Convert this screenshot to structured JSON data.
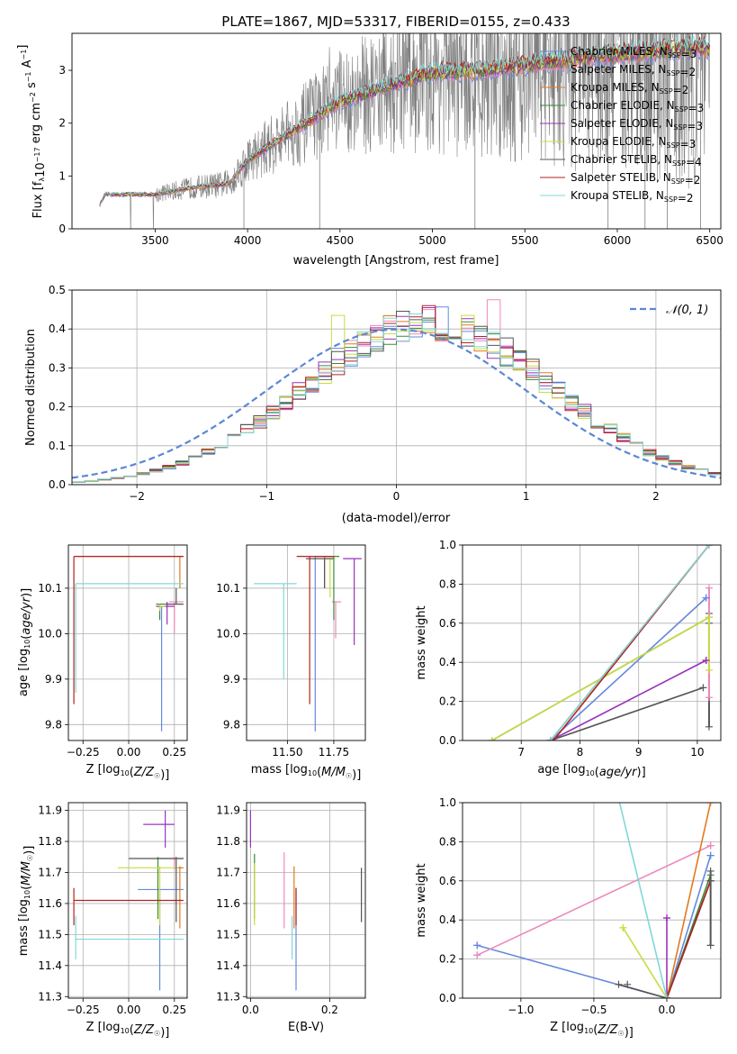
{
  "title": "PLATE=1867, MJD=53317, FIBERID=0155, z=0.433",
  "colors": {
    "Chabrier MILES": "#6688dd",
    "Salpeter MILES": "#ee88bb",
    "Kroupa MILES": "#e07a1f",
    "Chabrier ELODIE": "#3a8a3a",
    "Salpeter ELODIE": "#9933bb",
    "Kroupa ELODIE": "#c8dc40",
    "Chabrier STELIB": "#555555",
    "Salpeter STELIB": "#b22222",
    "Kroupa STELIB": "#80d8d8",
    "data": "#7f7f7f",
    "normal": "#5b86d6"
  },
  "chart_data": [
    {
      "id": "spectrum",
      "type": "line",
      "xlabel": "wavelength [Angstrom, rest frame]",
      "ylabel_main": "Flux [f",
      "ylabel_sub": "λ",
      "ylabel_rest": "10",
      "ylabel_exp": "−17",
      "ylabel_unit": " erg cm",
      "ylabel_exp2": "−2",
      "ylabel_unit2": " s",
      "ylabel_exp3": "−1",
      "ylabel_unit3": " A",
      "ylabel_exp4": "−1",
      "ylabel_end": "]",
      "xlim": [
        3050,
        6560
      ],
      "ylim": [
        0,
        3.7
      ],
      "xticks": [
        "3500",
        "4000",
        "4500",
        "5000",
        "5500",
        "6000",
        "6500"
      ],
      "xtick_values": [
        3500,
        4000,
        4500,
        5000,
        5500,
        6000,
        6500
      ],
      "yticks": [
        "0",
        "1",
        "2",
        "3"
      ],
      "ytick_values": [
        0,
        1,
        2,
        3
      ],
      "legend_position": "top-right",
      "legend": [
        {
          "name": "Chabrier MILES",
          "nssp": "3"
        },
        {
          "name": "Salpeter MILES",
          "nssp": "2"
        },
        {
          "name": "Kroupa MILES",
          "nssp": "2"
        },
        {
          "name": "Chabrier ELODIE",
          "nssp": "3"
        },
        {
          "name": "Salpeter ELODIE",
          "nssp": "3"
        },
        {
          "name": "Kroupa ELODIE",
          "nssp": "3"
        },
        {
          "name": "Chabrier STELIB",
          "nssp": "4"
        },
        {
          "name": "Salpeter STELIB",
          "nssp": "2"
        },
        {
          "name": "Kroupa STELIB",
          "nssp": "2"
        }
      ],
      "data_range": [
        3200,
        6500
      ],
      "model_profile": {
        "x": [
          3200,
          3230,
          3500,
          3700,
          3900,
          4000,
          4200,
          4500,
          4800,
          5000,
          5300,
          5600,
          6000,
          6300,
          6500
        ],
        "y": [
          0.45,
          0.65,
          0.65,
          0.78,
          0.85,
          1.3,
          1.75,
          2.4,
          2.75,
          2.95,
          3.0,
          3.15,
          3.3,
          3.4,
          3.45
        ]
      }
    },
    {
      "id": "residuals",
      "type": "histogram",
      "xlabel": "(data-model)/error",
      "ylabel": "Normed distribution",
      "xlim": [
        -2.5,
        2.5
      ],
      "ylim": [
        0,
        0.5
      ],
      "xticks": [
        "−2",
        "−1",
        "0",
        "1",
        "2"
      ],
      "xtick_values": [
        -2,
        -1,
        0,
        1,
        2
      ],
      "yticks": [
        "0.0",
        "0.1",
        "0.2",
        "0.3",
        "0.4",
        "0.5"
      ],
      "ytick_values": [
        0,
        0.1,
        0.2,
        0.3,
        0.4,
        0.5
      ],
      "legend": "𝒩(0, 1)",
      "legend_position": "top-right",
      "bin_width": 0.1
    },
    {
      "id": "age-vs-Z",
      "type": "errorbar",
      "xlabel": "Z [log",
      "xlabel_sub": "10",
      "xlabel_rest": "(Z/Z",
      "xlabel_sun": "☉",
      "xlabel_end": ")]",
      "ylabel": "age  [log",
      "ylabel_sub": "10",
      "ylabel_rest": "(age/yr)]",
      "xlim": [
        -0.33,
        0.32
      ],
      "ylim": [
        9.765,
        10.195
      ],
      "xticks": [
        "−0.25",
        "0.00",
        "0.25"
      ],
      "xtick_values": [
        -0.25,
        0,
        0.25
      ],
      "yticks": [
        "9.8",
        "9.9",
        "10.0",
        "10.1"
      ],
      "ytick_values": [
        9.8,
        9.9,
        10.0,
        10.1
      ],
      "points": [
        {
          "model": "Chabrier MILES",
          "x": 0.18,
          "y": 10.06,
          "xlo": 0.18,
          "xhi": 0.18,
          "ylo": 9.785,
          "yhi": 10.06
        },
        {
          "model": "Salpeter MILES",
          "x": 0.25,
          "y": 10.07,
          "xlo": 0.22,
          "xhi": 0.3,
          "ylo": 10.0,
          "yhi": 10.07
        },
        {
          "model": "Kroupa MILES",
          "x": 0.28,
          "y": 10.17,
          "xlo": -0.29,
          "xhi": 0.3,
          "ylo": 10.1,
          "yhi": 10.17
        },
        {
          "model": "Chabrier ELODIE",
          "x": 0.17,
          "y": 10.065,
          "xlo": 0.15,
          "xhi": 0.2,
          "ylo": 10.03,
          "yhi": 10.065
        },
        {
          "model": "Salpeter ELODIE",
          "x": 0.21,
          "y": 10.06,
          "xlo": 0.15,
          "xhi": 0.25,
          "ylo": 10.02,
          "yhi": 10.07
        },
        {
          "model": "Kroupa ELODIE",
          "x": 0.17,
          "y": 10.06,
          "xlo": 0.17,
          "xhi": 0.2,
          "ylo": 10.05,
          "yhi": 10.065
        },
        {
          "model": "Chabrier STELIB",
          "x": 0.26,
          "y": 10.065,
          "xlo": 0.2,
          "xhi": 0.3,
          "ylo": 10.1,
          "yhi": 10.065
        },
        {
          "model": "Salpeter STELIB",
          "x": -0.3,
          "y": 10.17,
          "xlo": -0.3,
          "xhi": 0.3,
          "ylo": 9.845,
          "yhi": 10.17
        },
        {
          "model": "Kroupa STELIB",
          "x": -0.29,
          "y": 10.11,
          "xlo": -0.29,
          "xhi": 0.3,
          "ylo": 9.87,
          "yhi": 10.11
        }
      ]
    },
    {
      "id": "age-vs-mass",
      "type": "errorbar",
      "xlabel": "mass [log",
      "xlabel_sub": "10",
      "xlabel_rest": "(M/M",
      "xlabel_sun": "☉",
      "xlabel_end": ")]",
      "xlim": [
        11.28,
        11.92
      ],
      "ylim": [
        9.765,
        10.195
      ],
      "xticks": [
        "11.50",
        "11.75"
      ],
      "xtick_values": [
        11.5,
        11.75
      ],
      "yticks": [
        "9.8",
        "9.9",
        "10.0",
        "10.1"
      ],
      "ytick_values": [
        9.8,
        9.9,
        10.0,
        10.1
      ],
      "points": [
        {
          "model": "Chabrier MILES",
          "x": 11.65,
          "y": 10.17,
          "xlo": 11.65,
          "xhi": 11.72,
          "ylo": 9.785,
          "yhi": 10.17
        },
        {
          "model": "Salpeter MILES",
          "x": 11.76,
          "y": 10.07,
          "xlo": 11.74,
          "xhi": 11.79,
          "ylo": 9.99,
          "yhi": 10.07
        },
        {
          "model": "Kroupa MILES",
          "x": 11.7,
          "y": 10.17,
          "xlo": 11.65,
          "xhi": 11.75,
          "ylo": 10.1,
          "yhi": 10.17
        },
        {
          "model": "Chabrier ELODIE",
          "x": 11.75,
          "y": 10.17,
          "xlo": 11.7,
          "xhi": 11.78,
          "ylo": 10.03,
          "yhi": 10.17
        },
        {
          "model": "Salpeter ELODIE",
          "x": 11.86,
          "y": 10.165,
          "xlo": 11.8,
          "xhi": 11.9,
          "ylo": 9.975,
          "yhi": 10.165
        },
        {
          "model": "Kroupa ELODIE",
          "x": 11.73,
          "y": 10.165,
          "xlo": 11.7,
          "xhi": 11.76,
          "ylo": 10.08,
          "yhi": 10.165
        },
        {
          "model": "Chabrier STELIB",
          "x": 11.7,
          "y": 10.165,
          "xlo": 11.6,
          "xhi": 11.75,
          "ylo": 10.1,
          "yhi": 10.165
        },
        {
          "model": "Salpeter STELIB",
          "x": 11.62,
          "y": 10.17,
          "xlo": 11.55,
          "xhi": 11.75,
          "ylo": 9.845,
          "yhi": 10.17
        },
        {
          "model": "Kroupa STELIB",
          "x": 11.48,
          "y": 10.11,
          "xlo": 11.32,
          "xhi": 11.55,
          "ylo": 9.9,
          "yhi": 10.11
        }
      ]
    },
    {
      "id": "massweight-vs-age",
      "type": "line",
      "xlabel": "age  [log",
      "xlabel_sub": "10",
      "xlabel_rest": "(age/yr)]",
      "ylabel": "mass weight",
      "xlim": [
        6.0,
        10.4
      ],
      "ylim": [
        0,
        1.0
      ],
      "xticks": [
        "7",
        "8",
        "9",
        "10"
      ],
      "xtick_values": [
        7,
        8,
        9,
        10
      ],
      "yticks": [
        "0.0",
        "0.2",
        "0.4",
        "0.6",
        "0.8",
        "1.0"
      ],
      "ytick_values": [
        0,
        0.2,
        0.4,
        0.6,
        0.8,
        1.0
      ],
      "series": [
        {
          "model": "Chabrier MILES",
          "x": [
            7.5,
            10.15
          ],
          "y": [
            0,
            0.73
          ]
        },
        {
          "model": "Salpeter MILES",
          "x": [
            7.5,
            10.2
          ],
          "y": [
            0,
            1.0
          ]
        },
        {
          "model": "Kroupa MILES",
          "x": [
            7.5,
            10.2
          ],
          "y": [
            0,
            1.0
          ]
        },
        {
          "model": "Chabrier ELODIE",
          "x": [
            6.5,
            10.2
          ],
          "y": [
            0,
            0.63
          ]
        },
        {
          "model": "Salpeter ELODIE",
          "x": [
            7.5,
            10.15
          ],
          "y": [
            0,
            0.41
          ]
        },
        {
          "model": "Kroupa ELODIE",
          "x": [
            6.5,
            10.2
          ],
          "y": [
            0,
            0.63
          ]
        },
        {
          "model": "Chabrier STELIB",
          "x": [
            7.5,
            10.1
          ],
          "y": [
            0,
            0.27
          ]
        },
        {
          "model": "Salpeter STELIB",
          "x": [
            7.55,
            10.2
          ],
          "y": [
            0,
            1.0
          ]
        },
        {
          "model": "Kroupa STELIB",
          "x": [
            7.5,
            10.2
          ],
          "y": [
            0,
            1.0
          ]
        }
      ],
      "markers": [
        {
          "model": "Chabrier STELIB",
          "x": 10.2,
          "y": [
            0.07,
            0.6,
            0.65
          ]
        },
        {
          "model": "Salpeter MILES",
          "x": 10.2,
          "y": [
            0.22,
            0.78
          ]
        },
        {
          "model": "Kroupa ELODIE",
          "x": 10.2,
          "y": [
            0.36,
            0.63
          ]
        },
        {
          "model": "Chabrier MILES",
          "x": 10.15,
          "y": [
            0.73
          ]
        },
        {
          "model": "Salpeter ELODIE",
          "x": 10.15,
          "y": [
            0.41
          ]
        }
      ]
    },
    {
      "id": "mass-vs-Z",
      "type": "errorbar",
      "xlabel": "Z [log",
      "xlabel_sub": "10",
      "xlabel_rest": "(Z/Z",
      "xlabel_sun": "☉",
      "xlabel_end": ")]",
      "ylabel": "mass [log",
      "ylabel_sub": "10",
      "ylabel_rest": "(M/M",
      "ylabel_sun": "☉",
      "ylabel_end": ")]",
      "xlim": [
        -0.33,
        0.32
      ],
      "ylim": [
        11.295,
        11.925
      ],
      "xticks": [
        "−0.25",
        "0.00",
        "0.25"
      ],
      "xtick_values": [
        -0.25,
        0,
        0.25
      ],
      "yticks": [
        "11.3",
        "11.4",
        "11.5",
        "11.6",
        "11.7",
        "11.8",
        "11.9"
      ],
      "ytick_values": [
        11.3,
        11.4,
        11.5,
        11.6,
        11.7,
        11.8,
        11.9
      ],
      "points": [
        {
          "model": "Chabrier MILES",
          "x": 0.17,
          "y": 11.645,
          "xlo": 0.05,
          "xhi": 0.3,
          "ylo": 11.32,
          "yhi": 11.65
        },
        {
          "model": "Salpeter MILES",
          "x": 0.25,
          "y": 11.745,
          "xlo": 0.2,
          "xhi": 0.3,
          "ylo": 11.71,
          "yhi": 11.75
        },
        {
          "model": "Kroupa MILES",
          "x": 0.28,
          "y": 11.715,
          "xlo": 0.27,
          "xhi": 0.3,
          "ylo": 11.52,
          "yhi": 11.72
        },
        {
          "model": "Chabrier ELODIE",
          "x": 0.16,
          "y": 11.745,
          "xlo": 0.15,
          "xhi": 0.2,
          "ylo": 11.55,
          "yhi": 11.75
        },
        {
          "model": "Salpeter ELODIE",
          "x": 0.2,
          "y": 11.855,
          "xlo": 0.08,
          "xhi": 0.25,
          "ylo": 11.78,
          "yhi": 11.9
        },
        {
          "model": "Kroupa ELODIE",
          "x": 0.17,
          "y": 11.715,
          "xlo": -0.06,
          "xhi": 0.27,
          "ylo": 11.53,
          "yhi": 11.72
        },
        {
          "model": "Chabrier STELIB",
          "x": 0.26,
          "y": 11.745,
          "xlo": 0.0,
          "xhi": 0.3,
          "ylo": 11.54,
          "yhi": 11.75
        },
        {
          "model": "Salpeter STELIB",
          "x": -0.3,
          "y": 11.61,
          "xlo": -0.3,
          "xhi": 0.3,
          "ylo": 11.53,
          "yhi": 11.65
        },
        {
          "model": "Kroupa STELIB",
          "x": -0.29,
          "y": 11.485,
          "xlo": -0.29,
          "xhi": 0.3,
          "ylo": 11.42,
          "yhi": 11.56
        }
      ]
    },
    {
      "id": "mass-vs-EBV",
      "type": "errorbar",
      "xlabel": "E(B-V)",
      "xlim": [
        -0.01,
        0.29
      ],
      "ylim": [
        11.295,
        11.925
      ],
      "xticks": [
        "0.0",
        "0.2"
      ],
      "xtick_values": [
        0,
        0.2
      ],
      "yticks": [
        "11.3",
        "11.4",
        "11.5",
        "11.6",
        "11.7",
        "11.8",
        "11.9"
      ],
      "ytick_values": [
        11.3,
        11.4,
        11.5,
        11.6,
        11.7,
        11.8,
        11.9
      ],
      "points": [
        {
          "model": "Chabrier MILES",
          "x": 0.115,
          "ylo": 11.32,
          "yhi": 11.65
        },
        {
          "model": "Salpeter MILES",
          "x": 0.085,
          "ylo": 11.52,
          "yhi": 11.765
        },
        {
          "model": "Kroupa MILES",
          "x": 0.11,
          "ylo": 11.52,
          "yhi": 11.72
        },
        {
          "model": "Chabrier ELODIE",
          "x": 0.01,
          "ylo": 11.55,
          "yhi": 11.76
        },
        {
          "model": "Salpeter ELODIE",
          "x": 0.0,
          "ylo": 11.78,
          "yhi": 11.9
        },
        {
          "model": "Kroupa ELODIE",
          "x": 0.01,
          "ylo": 11.53,
          "yhi": 11.73
        },
        {
          "model": "Chabrier STELIB",
          "x": 0.28,
          "ylo": 11.54,
          "yhi": 11.715
        },
        {
          "model": "Salpeter STELIB",
          "x": 0.115,
          "ylo": 11.53,
          "yhi": 11.65
        },
        {
          "model": "Kroupa STELIB",
          "x": 0.105,
          "ylo": 11.42,
          "yhi": 11.56
        }
      ]
    },
    {
      "id": "massweight-vs-Z",
      "type": "line",
      "xlabel": "Z [log",
      "xlabel_sub": "10",
      "xlabel_rest": "(Z/Z",
      "xlabel_sun": "☉",
      "xlabel_end": ")]",
      "ylabel": "mass weight",
      "xlim": [
        -1.4,
        0.37
      ],
      "ylim": [
        0,
        1.0
      ],
      "xticks": [
        "−1.0",
        "−0.5",
        "0.0"
      ],
      "xtick_values": [
        -1.0,
        -0.5,
        0.0
      ],
      "yticks": [
        "0.0",
        "0.2",
        "0.4",
        "0.6",
        "0.8",
        "1.0"
      ],
      "ytick_values": [
        0,
        0.2,
        0.4,
        0.6,
        0.8,
        1.0
      ],
      "series": [
        {
          "model": "Chabrier MILES",
          "x": [
            -1.3,
            0.0,
            0.3
          ],
          "y": [
            0.27,
            0.0,
            0.73
          ]
        },
        {
          "model": "Salpeter MILES",
          "x": [
            -1.3,
            0.3
          ],
          "y": [
            0.22,
            0.78
          ]
        },
        {
          "model": "Kroupa MILES",
          "x": [
            0.0,
            0.3
          ],
          "y": [
            0.0,
            1.0
          ]
        },
        {
          "model": "Chabrier ELODIE",
          "x": [
            0.0,
            0.3
          ],
          "y": [
            0.0,
            0.63
          ]
        },
        {
          "model": "Salpeter ELODIE",
          "x": [
            0.0,
            0.0
          ],
          "y": [
            0.0,
            0.41
          ]
        },
        {
          "model": "Kroupa ELODIE",
          "x": [
            -0.3,
            0.0
          ],
          "y": [
            0.36,
            0.0
          ]
        },
        {
          "model": "Chabrier STELIB",
          "x": [
            -0.33,
            0.0,
            0.3
          ],
          "y": [
            0.07,
            0.0,
            0.6
          ]
        },
        {
          "model": "Salpeter STELIB",
          "x": [
            0.0,
            0.3
          ],
          "y": [
            0.0,
            0.6
          ]
        },
        {
          "model": "Kroupa STELIB",
          "x": [
            -0.34,
            0.0
          ],
          "y": [
            1.05,
            0.0
          ]
        }
      ],
      "markers": [
        {
          "model": "Chabrier STELIB",
          "x": 0.3,
          "y": [
            0.27,
            0.6,
            0.65
          ]
        },
        {
          "model": "Chabrier MILES",
          "x": 0.3,
          "y": [
            0.73
          ]
        },
        {
          "model": "Salpeter MILES",
          "x": 0.3,
          "y": [
            0.78
          ]
        },
        {
          "model": "Salpeter ELODIE",
          "x": 0.0,
          "y": [
            0.41
          ]
        },
        {
          "model": "Kroupa ELODIE",
          "x": -0.3,
          "y": [
            0.36
          ]
        },
        {
          "model": "Chabrier STELIB",
          "x": -0.27,
          "y": [
            0.07
          ]
        },
        {
          "model": "Chabrier MILES",
          "x": -1.3,
          "y": [
            0.27
          ]
        },
        {
          "model": "Salpeter MILES",
          "x": -1.3,
          "y": [
            0.22
          ]
        }
      ]
    }
  ]
}
